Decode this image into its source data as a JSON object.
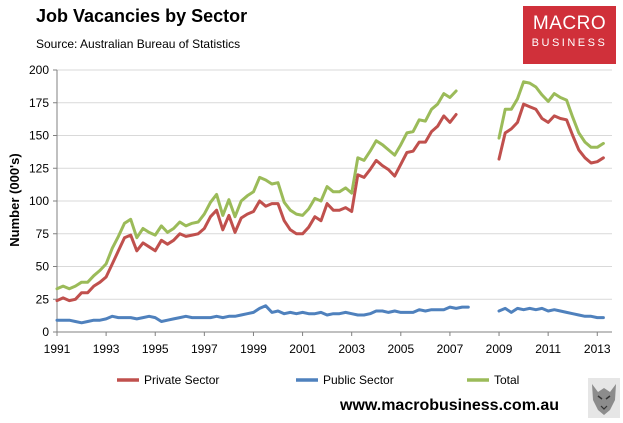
{
  "header": {
    "title": "Job Vacancies by Sector",
    "subtitle": "Source: Australian Bureau of Statistics"
  },
  "brand": {
    "line1": "MACRO",
    "line2": "BUSINESS"
  },
  "footer": {
    "website": "www.macrobusiness.com.au"
  },
  "colors": {
    "private": "#c0504d",
    "public": "#4f81bd",
    "total": "#9bbb59",
    "brand": "#d0303a"
  },
  "chart_data": {
    "type": "line",
    "title": "Job Vacancies by Sector",
    "xlabel": "",
    "ylabel": "Number (000's)",
    "xlim": [
      1991,
      2013.6
    ],
    "ylim": [
      0,
      200
    ],
    "xticks": [
      1991,
      1993,
      1995,
      1997,
      1999,
      2001,
      2003,
      2005,
      2007,
      2009,
      2011,
      2013
    ],
    "yticks": [
      0,
      25,
      50,
      75,
      100,
      125,
      150,
      175,
      200
    ],
    "x": [
      1991.0,
      1991.25,
      1991.5,
      1991.75,
      1992.0,
      1992.25,
      1992.5,
      1992.75,
      1993.0,
      1993.25,
      1993.5,
      1993.75,
      1994.0,
      1994.25,
      1994.5,
      1994.75,
      1995.0,
      1995.25,
      1995.5,
      1995.75,
      1996.0,
      1996.25,
      1996.5,
      1996.75,
      1997.0,
      1997.25,
      1997.5,
      1997.75,
      1998.0,
      1998.25,
      1998.5,
      1998.75,
      1999.0,
      1999.25,
      1999.5,
      1999.75,
      2000.0,
      2000.25,
      2000.5,
      2000.75,
      2001.0,
      2001.25,
      2001.5,
      2001.75,
      2002.0,
      2002.25,
      2002.5,
      2002.75,
      2003.0,
      2003.25,
      2003.5,
      2003.75,
      2004.0,
      2004.25,
      2004.5,
      2004.75,
      2005.0,
      2005.25,
      2005.5,
      2005.75,
      2006.0,
      2006.25,
      2006.5,
      2006.75,
      2007.0,
      2007.25,
      2007.5,
      2007.75,
      2008.0,
      2008.25,
      2008.5,
      2008.75,
      2009.0,
      2009.25,
      2009.5,
      2009.75,
      2010.0,
      2010.25,
      2010.5,
      2010.75,
      2011.0,
      2011.25,
      2011.5,
      2011.75,
      2012.0,
      2012.25,
      2012.5,
      2012.75,
      2013.0,
      2013.25
    ],
    "series": [
      {
        "name": "Private Sector",
        "color": "#c0504d",
        "values": [
          24,
          26,
          24,
          25,
          30,
          30,
          35,
          38,
          42,
          52,
          62,
          72,
          74,
          62,
          68,
          65,
          62,
          70,
          67,
          70,
          75,
          73,
          74,
          75,
          79,
          88,
          93,
          78,
          89,
          76,
          87,
          90,
          92,
          100,
          96,
          98,
          98,
          85,
          78,
          75,
          75,
          80,
          88,
          85,
          98,
          93,
          93,
          95,
          92,
          120,
          118,
          124,
          131,
          127,
          124,
          119,
          128,
          137,
          138,
          145,
          145,
          153,
          157,
          165,
          160,
          166,
          null,
          null,
          null,
          null,
          null,
          null,
          132,
          152,
          155,
          160,
          174,
          172,
          170,
          163,
          160,
          165,
          163,
          162,
          150,
          139,
          133,
          129,
          130,
          133
        ]
      },
      {
        "name": "Public Sector",
        "color": "#4f81bd",
        "values": [
          9,
          9,
          9,
          8,
          7,
          8,
          9,
          9,
          10,
          12,
          11,
          11,
          11,
          10,
          11,
          12,
          11,
          8,
          9,
          10,
          11,
          12,
          11,
          11,
          11,
          11,
          12,
          11,
          12,
          12,
          13,
          14,
          15,
          18,
          20,
          15,
          16,
          14,
          15,
          14,
          15,
          14,
          14,
          15,
          13,
          14,
          14,
          15,
          14,
          13,
          13,
          14,
          16,
          16,
          15,
          16,
          15,
          15,
          15,
          17,
          16,
          17,
          17,
          17,
          19,
          18,
          19,
          19,
          null,
          null,
          null,
          null,
          16,
          18,
          15,
          18,
          17,
          18,
          17,
          18,
          16,
          17,
          16,
          15,
          14,
          13,
          12,
          12,
          11,
          11
        ]
      },
      {
        "name": "Total",
        "color": "#9bbb59",
        "values": [
          33,
          35,
          33,
          35,
          38,
          38,
          43,
          47,
          52,
          64,
          73,
          83,
          86,
          72,
          79,
          76,
          74,
          81,
          76,
          79,
          84,
          81,
          83,
          84,
          90,
          99,
          105,
          89,
          101,
          88,
          100,
          104,
          107,
          118,
          116,
          113,
          114,
          99,
          93,
          90,
          89,
          94,
          102,
          100,
          111,
          107,
          107,
          110,
          106,
          133,
          131,
          138,
          146,
          143,
          139,
          135,
          143,
          152,
          153,
          162,
          161,
          170,
          174,
          182,
          179,
          184,
          null,
          null,
          null,
          null,
          null,
          null,
          148,
          170,
          170,
          178,
          191,
          190,
          187,
          181,
          176,
          182,
          179,
          177,
          164,
          152,
          145,
          141,
          141,
          144
        ]
      }
    ],
    "legend": {
      "placement": "bottom",
      "entries": [
        "Private Sector",
        "Public Sector",
        "Total"
      ]
    }
  }
}
